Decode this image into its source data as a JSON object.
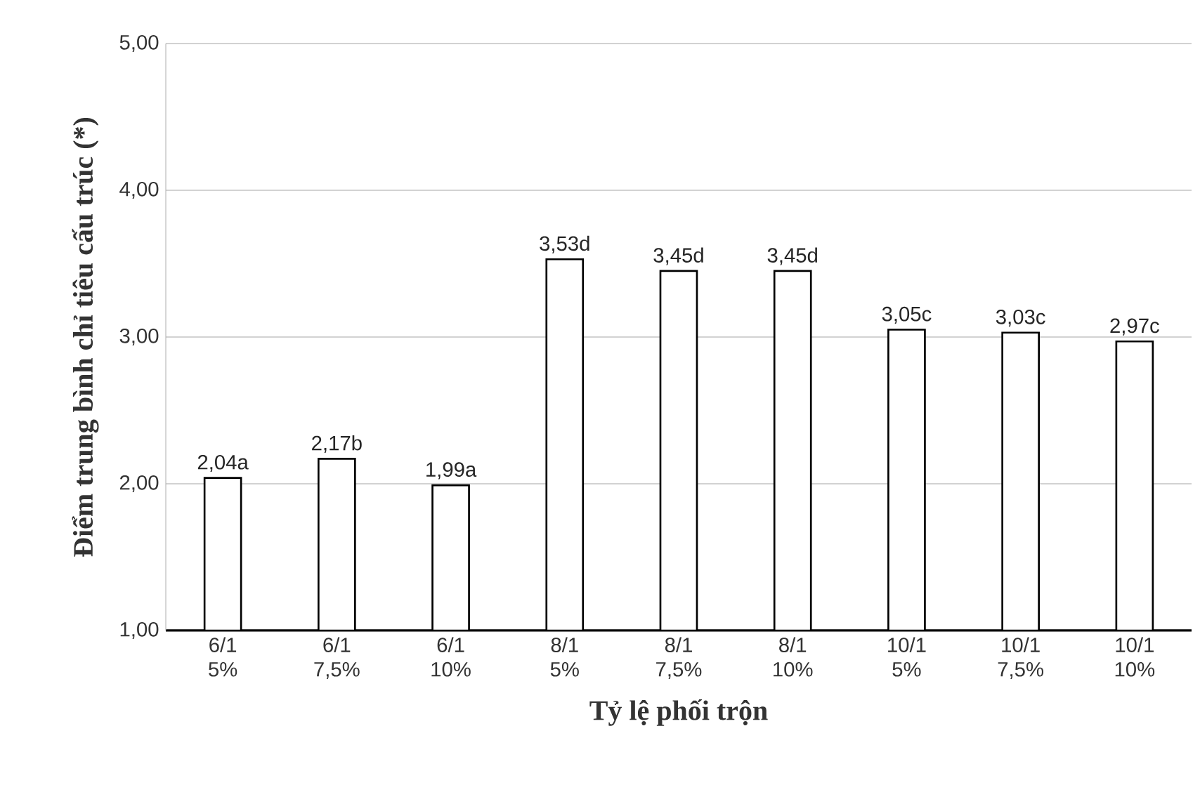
{
  "chart_data": {
    "type": "bar",
    "xlabel": "Tỷ lệ phối trộn",
    "ylabel": "Điểm trung bình chỉ tiêu cấu trúc (*)",
    "categories": [
      "6/1 5%",
      "6/1 7,5%",
      "6/1 10%",
      "8/1 5%",
      "8/1 7,5%",
      "8/1 10%",
      "10/1 5%",
      "10/1 7,5%",
      "10/1 10%"
    ],
    "values": [
      2.04,
      2.17,
      1.99,
      3.53,
      3.45,
      3.45,
      3.05,
      3.03,
      2.97
    ],
    "value_labels": [
      "2,04a",
      "2,17b",
      "1,99a",
      "3,53d",
      "3,45d",
      "3,45d",
      "3,05c",
      "3,03c",
      "2,97c"
    ],
    "color": "#ffffff",
    "ylim": [
      1,
      5
    ],
    "yticks": [
      {
        "value": 1,
        "label": "1,00"
      },
      {
        "value": 2,
        "label": "2,00"
      },
      {
        "value": 3,
        "label": "3,00"
      },
      {
        "value": 4,
        "label": "4,00"
      },
      {
        "value": 5,
        "label": "5,00"
      }
    ],
    "grid": "y"
  }
}
